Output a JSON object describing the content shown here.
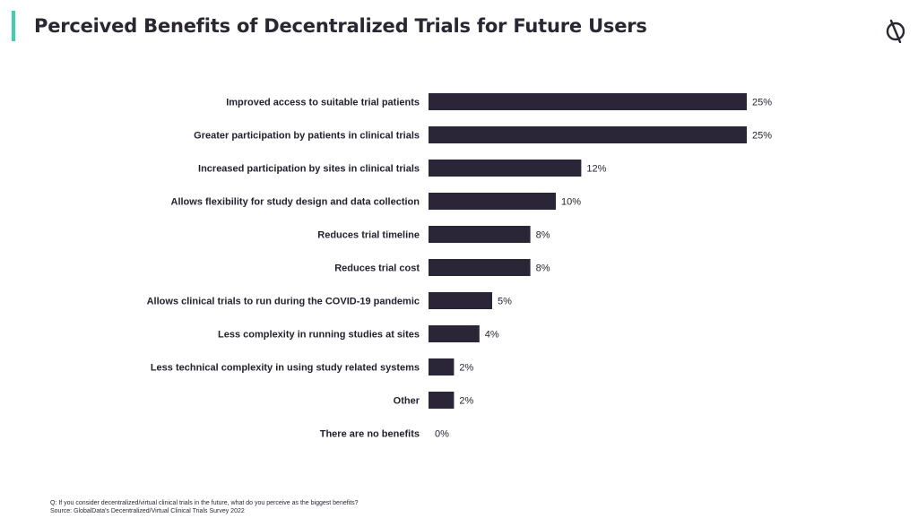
{
  "header": {
    "title": "Perceived Benefits of Decentralized Trials for Future Users",
    "logo_icon": "globaldata-logo-icon"
  },
  "colors": {
    "accent": "#3ecfb2",
    "bar": "#2b2637",
    "text": "#231f2e"
  },
  "chart_data": {
    "type": "bar",
    "orientation": "horizontal",
    "categories": [
      "Improved access to suitable trial patients",
      "Greater participation by patients in clinical trials",
      "Increased participation by sites in clinical trials",
      "Allows flexibility for study design and data collection",
      "Reduces trial timeline",
      "Reduces trial cost",
      "Allows clinical trials to run during the COVID-19 pandemic",
      "Less complexity in running studies at sites",
      "Less technical complexity in using study related systems",
      "Other",
      "There are no benefits"
    ],
    "values": [
      25,
      25,
      12,
      10,
      8,
      8,
      5,
      4,
      2,
      2,
      0
    ],
    "value_labels": [
      "25%",
      "25%",
      "12%",
      "10%",
      "8%",
      "8%",
      "5%",
      "4%",
      "2%",
      "2%",
      "0%"
    ],
    "unit": "%",
    "xlim": [
      0,
      25
    ],
    "grid": false,
    "legend": "none"
  },
  "footnote": {
    "question": "Q: If you consider decentralized/virtual clinical trials in the future, what do you perceive as the biggest benefits?",
    "source": "Source: GlobalData's Decentralized/Virtual Clinical Trials Survey 2022"
  }
}
